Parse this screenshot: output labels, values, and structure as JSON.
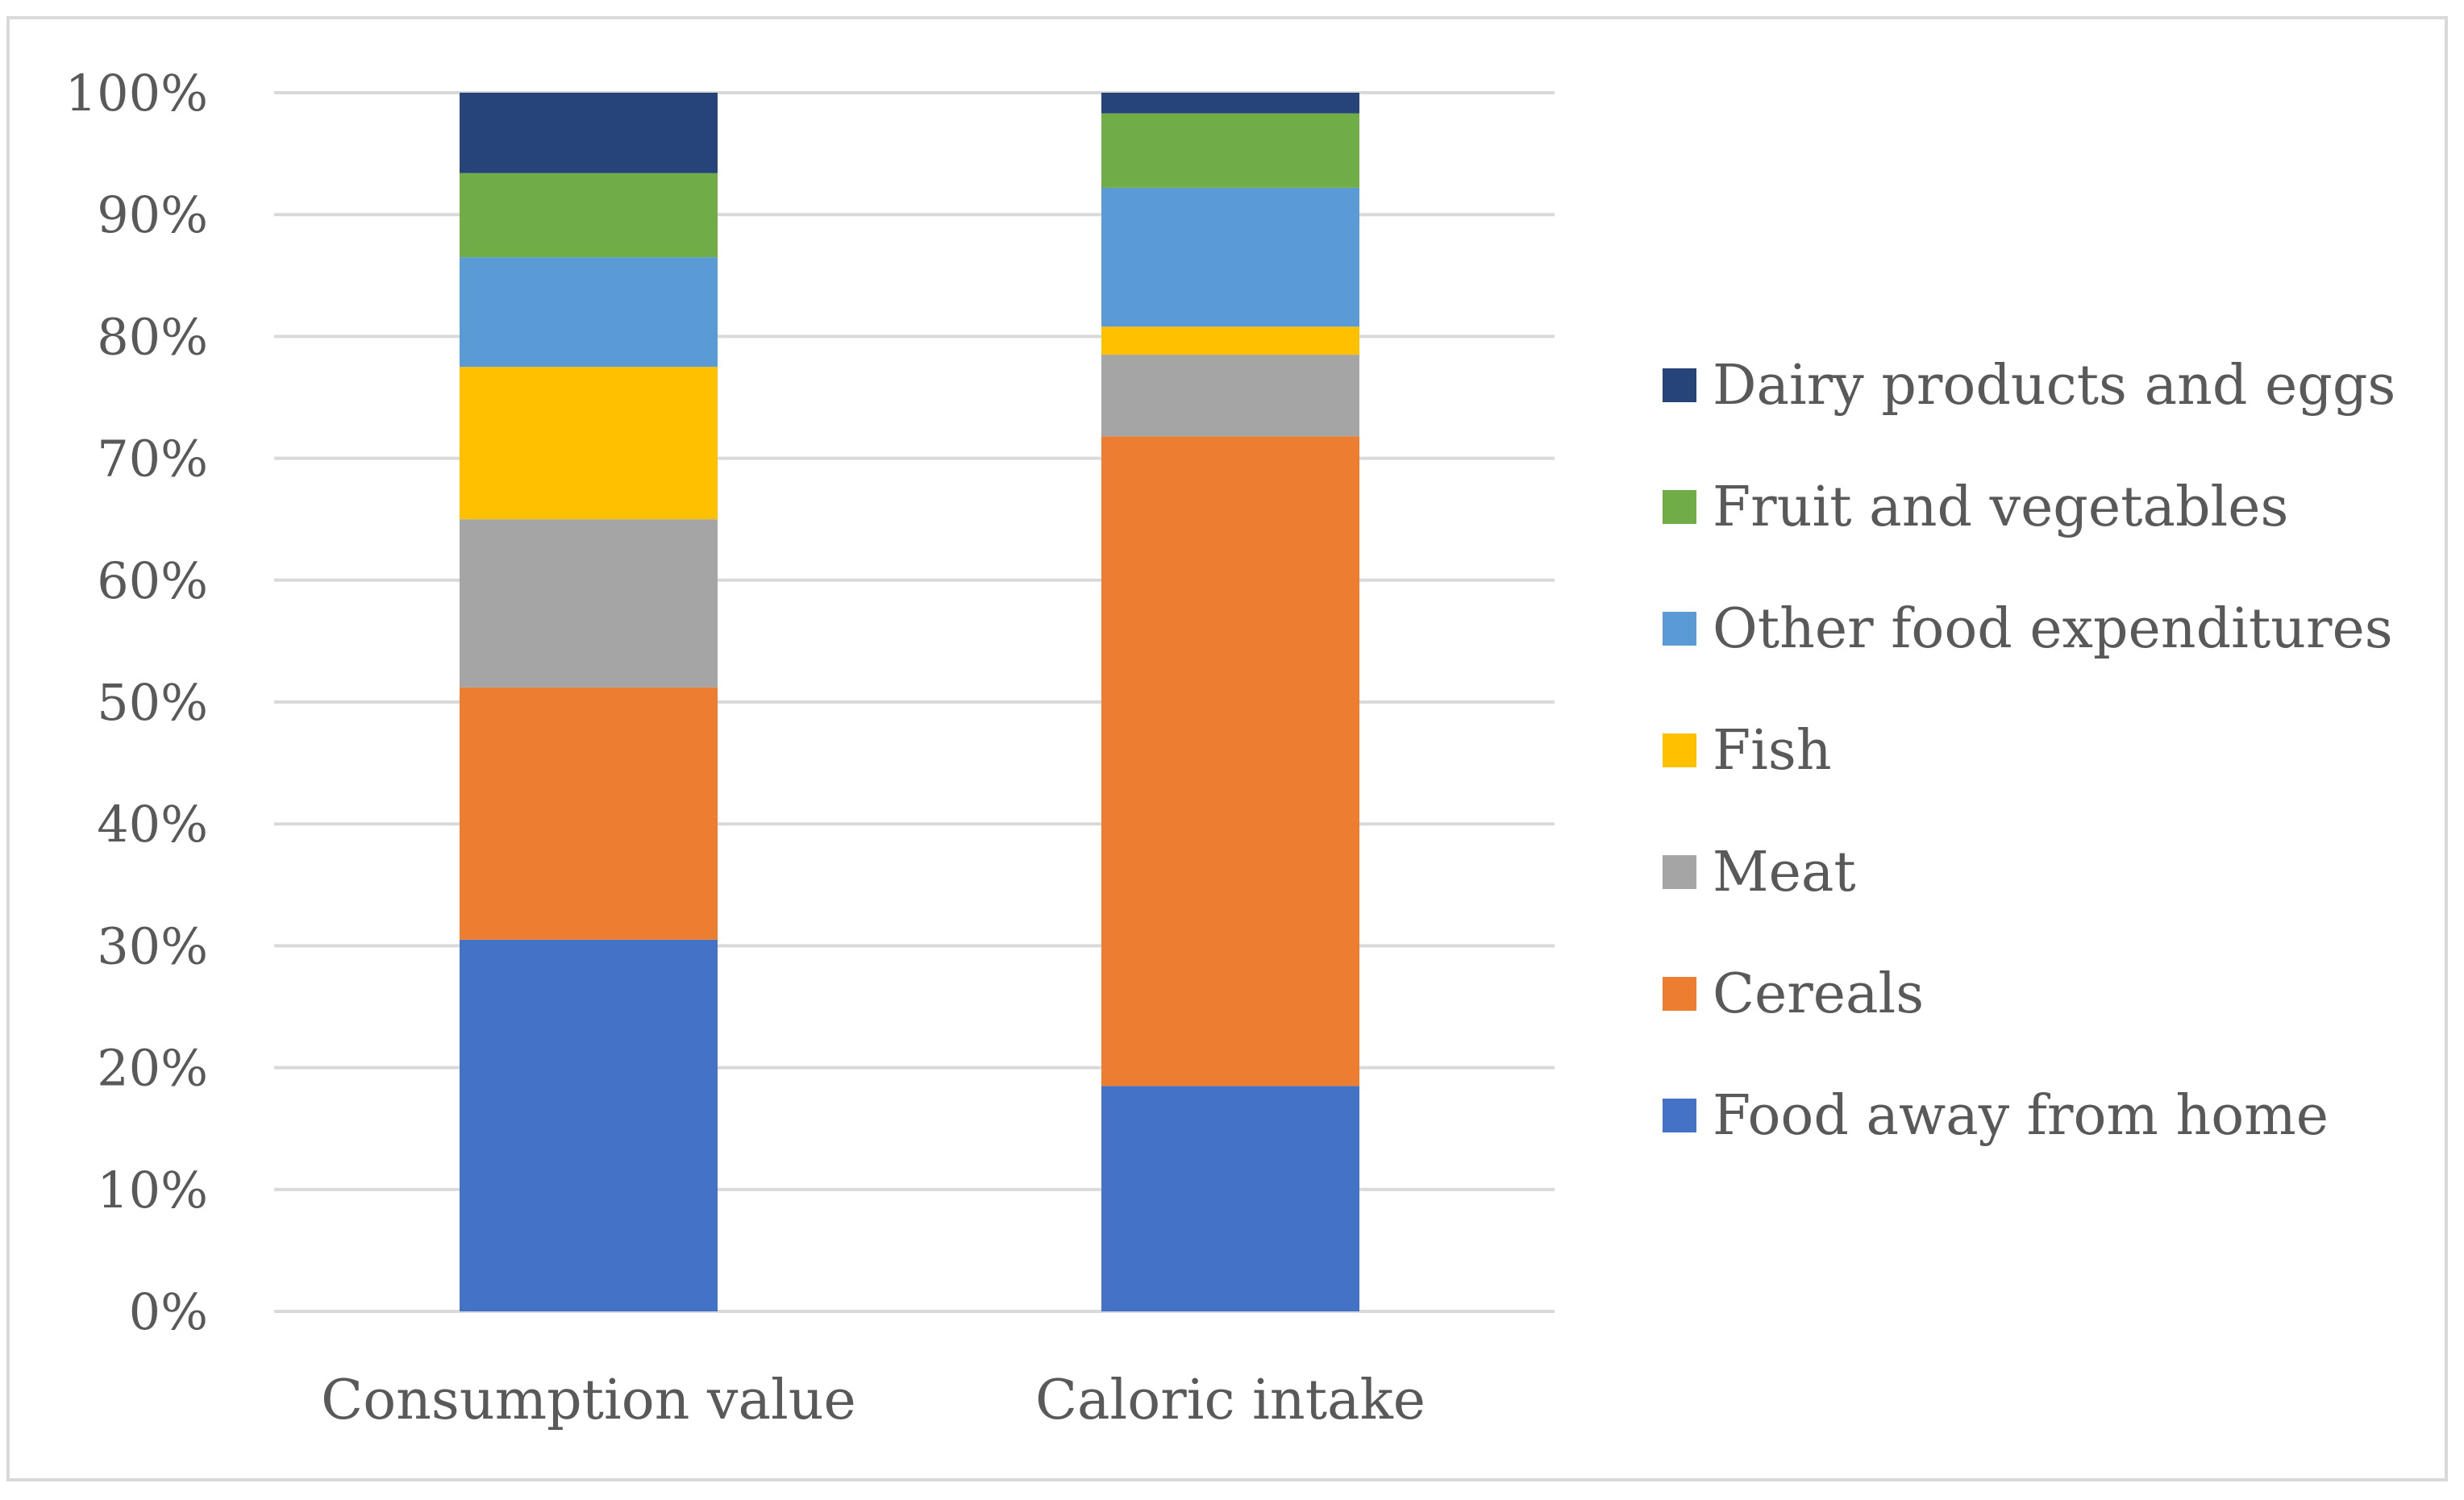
{
  "chart_data": {
    "type": "bar",
    "stacked": "percent",
    "title": "",
    "xlabel": "",
    "ylabel": "",
    "ylim": [
      0,
      100
    ],
    "y_ticks": [
      "0%",
      "10%",
      "20%",
      "30%",
      "40%",
      "50%",
      "60%",
      "70%",
      "80%",
      "90%",
      "100%"
    ],
    "grid": true,
    "legend_position": "right",
    "categories": [
      "Consumption value",
      "Caloric intake"
    ],
    "series": [
      {
        "name": "Food away from home",
        "color": "#4472C4",
        "values": [
          30.5,
          18.5
        ]
      },
      {
        "name": "Cereals",
        "color": "#ED7D31",
        "values": [
          20.7,
          53.3
        ]
      },
      {
        "name": "Meat",
        "color": "#A5A5A5",
        "values": [
          13.8,
          6.7
        ]
      },
      {
        "name": "Fish",
        "color": "#FFC000",
        "values": [
          12.5,
          2.3
        ]
      },
      {
        "name": "Other food expenditures",
        "color": "#5B9BD5",
        "values": [
          9.0,
          11.4
        ]
      },
      {
        "name": "Fruit and vegetables",
        "color": "#70AD47",
        "values": [
          6.9,
          6.1
        ]
      },
      {
        "name": "Dairy products and eggs",
        "color": "#264478",
        "values": [
          6.6,
          1.7
        ]
      }
    ]
  }
}
